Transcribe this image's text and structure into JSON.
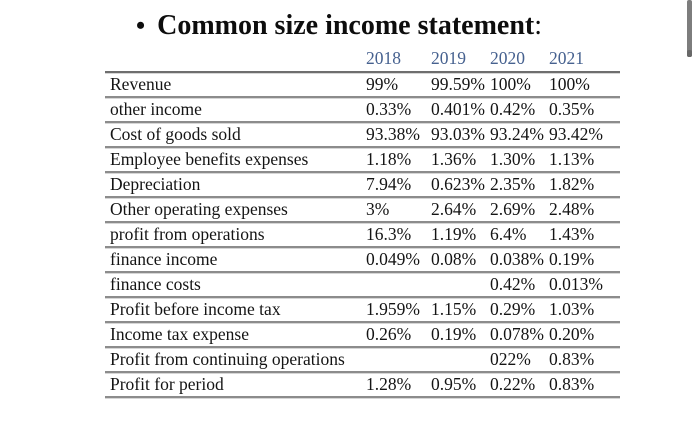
{
  "title": {
    "bullet": "•",
    "text": "Common size income statement",
    "colon": ":"
  },
  "table": {
    "year_headers": [
      "2018",
      "2019",
      "2020",
      "2021"
    ],
    "rows": [
      {
        "label": "Revenue",
        "values": [
          "99%",
          "99.59%",
          "100%",
          "100%"
        ]
      },
      {
        "label": "other income",
        "values": [
          "0.33%",
          "0.401%",
          "0.42%",
          "0.35%"
        ]
      },
      {
        "label": "Cost of goods sold",
        "values": [
          "93.38%",
          "93.03%",
          "93.24%",
          "93.42%"
        ]
      },
      {
        "label": "Employee benefits expenses",
        "values": [
          "1.18%",
          "1.36%",
          "1.30%",
          "1.13%"
        ]
      },
      {
        "label": "Depreciation",
        "values": [
          "7.94%",
          "0.623%",
          "2.35%",
          "1.82%"
        ]
      },
      {
        "label": "Other operating expenses",
        "values": [
          "3%",
          "2.64%",
          "2.69%",
          "2.48%"
        ]
      },
      {
        "label": "profit from operations",
        "values": [
          "16.3%",
          "1.19%",
          "6.4%",
          "1.43%"
        ]
      },
      {
        "label": "finance income",
        "values": [
          "0.049%",
          "0.08%",
          "0.038%",
          "0.19%"
        ]
      },
      {
        "label": "finance costs",
        "values": [
          "",
          "",
          "0.42%",
          "0.013%"
        ]
      },
      {
        "label": "Profit before income tax",
        "values": [
          "1.959%",
          "1.15%",
          "0.29%",
          "1.03%"
        ]
      },
      {
        "label": "Income tax expense",
        "values": [
          "0.26%",
          "0.19%",
          "0.078%",
          "0.20%"
        ]
      },
      {
        "label": "Profit from continuing operations",
        "values": [
          "",
          "",
          "022%",
          "0.83%"
        ]
      },
      {
        "label": "Profit for period",
        "values": [
          "1.28%",
          "0.95%",
          "0.22%",
          "0.83%"
        ]
      }
    ]
  },
  "colors": {
    "title_text": "#0d0d0d",
    "year_header": "#46618f",
    "header_line_dark": "#6e6e6e",
    "row_line_dark": "#8c8c8c",
    "row_line_light": "#d6d6d6",
    "scrollbar_thumb": "#7d7d7d"
  }
}
